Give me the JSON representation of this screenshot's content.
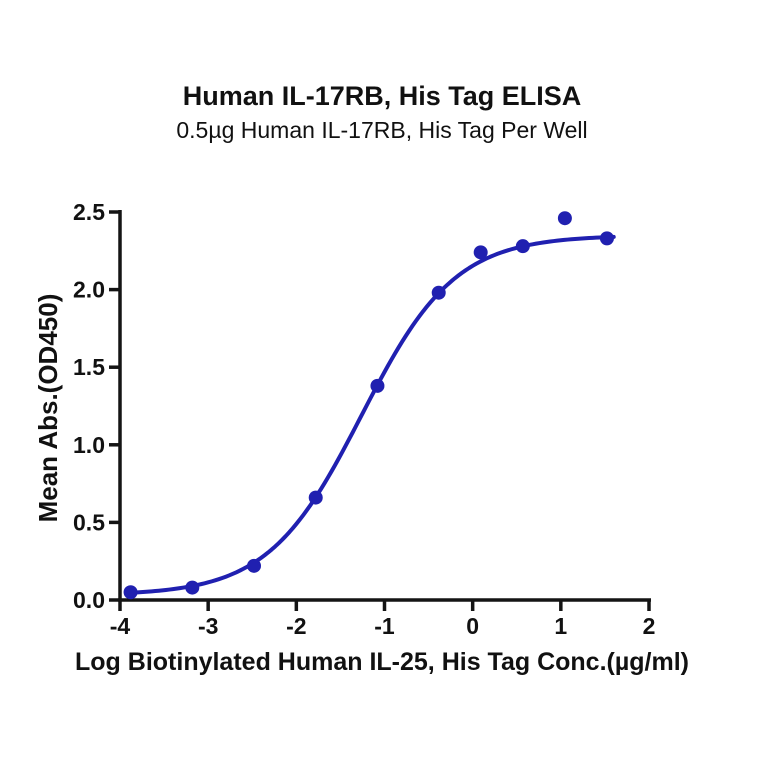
{
  "header": {
    "title": "Human IL-17RB, His Tag ELISA",
    "subtitle": "0.5µg Human IL-17RB, His Tag Per Well"
  },
  "chart_data": {
    "type": "scatter",
    "title": "Human IL-17RB, His Tag ELISA",
    "subtitle": "0.5µg Human IL-17RB, His Tag Per Well",
    "xlabel": "Log Biotinylated Human IL-25, His Tag Conc.(µg/ml)",
    "ylabel": "Mean Abs.(OD450)",
    "xlim": [
      -4,
      2
    ],
    "ylim": [
      0,
      2.5
    ],
    "x_ticks": [
      -4,
      -3,
      -2,
      -1,
      0,
      1,
      2
    ],
    "x_tick_labels": [
      "-4",
      "-3",
      "-2",
      "-1",
      "0",
      "1",
      "2"
    ],
    "y_ticks": [
      0.0,
      0.5,
      1.0,
      1.5,
      2.0,
      2.5
    ],
    "y_tick_labels": [
      "0.0",
      "0.5",
      "1.0",
      "1.5",
      "2.0",
      "2.5"
    ],
    "grid": false,
    "legend_position": "none",
    "series": [
      {
        "name": "Biotinylated Human IL-25, His Tag",
        "marker": "circle",
        "points": [
          {
            "log_conc": -3.88,
            "od450": 0.05
          },
          {
            "log_conc": -3.18,
            "od450": 0.08
          },
          {
            "log_conc": -2.48,
            "od450": 0.22
          },
          {
            "log_conc": -1.78,
            "od450": 0.66
          },
          {
            "log_conc": -1.08,
            "od450": 1.38
          },
          {
            "log_conc": -0.385,
            "od450": 1.98
          },
          {
            "log_conc": 0.091,
            "od450": 2.24
          },
          {
            "log_conc": 0.569,
            "od450": 2.28
          },
          {
            "log_conc": 1.046,
            "od450": 2.46
          },
          {
            "log_conc": 1.523,
            "od450": 2.33
          }
        ]
      }
    ],
    "fit_curve": {
      "model": "4PL",
      "bottom": 0.03,
      "top": 2.35,
      "log_ec50": -1.26,
      "hill_slope": 0.82,
      "x_start": -3.92,
      "x_end": 1.6
    },
    "colors": {
      "points": "#2020b0",
      "curve": "#2020b0",
      "axis": "#141414",
      "text": "#111111"
    }
  }
}
